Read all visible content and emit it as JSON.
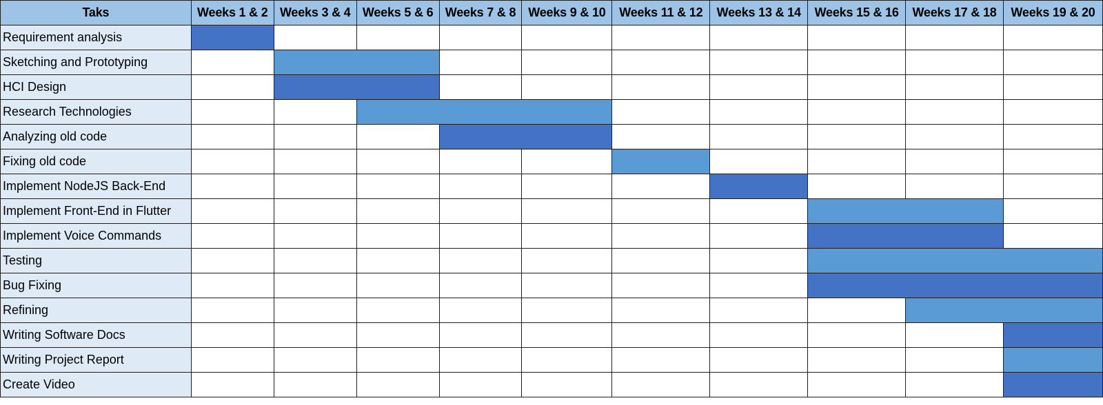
{
  "chart_data": {
    "type": "table",
    "title": "",
    "header_label": "Taks",
    "periods": [
      "Weeks 1 & 2",
      "Weeks 3 & 4",
      "Weeks 5 & 6",
      "Weeks 7 & 8",
      "Weeks 9 & 10",
      "Weeks 11 & 12",
      "Weeks 13 & 14",
      "Weeks 15 & 16",
      "Weeks 17 & 18",
      "Weeks 19 & 20"
    ],
    "colors": {
      "header_bg": "#9dc3e6",
      "task_bg": "#deebf7",
      "bar_dark": "#4472c4",
      "bar_light": "#5b9bd5",
      "empty": "#ffffff",
      "grid": "#1f1f1f"
    },
    "tasks": [
      {
        "name": "Requirement analysis",
        "start": 1,
        "end": 1,
        "shade": "dark"
      },
      {
        "name": "Sketching and Prototyping",
        "start": 2,
        "end": 3,
        "shade": "light"
      },
      {
        "name": "HCI Design",
        "start": 2,
        "end": 3,
        "shade": "dark"
      },
      {
        "name": "Research Technologies",
        "start": 3,
        "end": 5,
        "shade": "light"
      },
      {
        "name": "Analyzing old code",
        "start": 4,
        "end": 5,
        "shade": "dark"
      },
      {
        "name": "Fixing old code",
        "start": 6,
        "end": 6,
        "shade": "light"
      },
      {
        "name": "Implement NodeJS Back-End",
        "start": 7,
        "end": 7,
        "shade": "dark"
      },
      {
        "name": "Implement Front-End in Flutter",
        "start": 8,
        "end": 9,
        "shade": "light"
      },
      {
        "name": "Implement Voice Commands",
        "start": 8,
        "end": 9,
        "shade": "dark"
      },
      {
        "name": "Testing",
        "start": 8,
        "end": 10,
        "shade": "light"
      },
      {
        "name": "Bug Fixing",
        "start": 8,
        "end": 10,
        "shade": "dark"
      },
      {
        "name": "Refining",
        "start": 9,
        "end": 10,
        "shade": "light"
      },
      {
        "name": "Writing Software Docs",
        "start": 10,
        "end": 10,
        "shade": "dark"
      },
      {
        "name": "Writing Project Report",
        "start": 10,
        "end": 10,
        "shade": "light"
      },
      {
        "name": "Create Video",
        "start": 10,
        "end": 10,
        "shade": "dark"
      }
    ]
  }
}
